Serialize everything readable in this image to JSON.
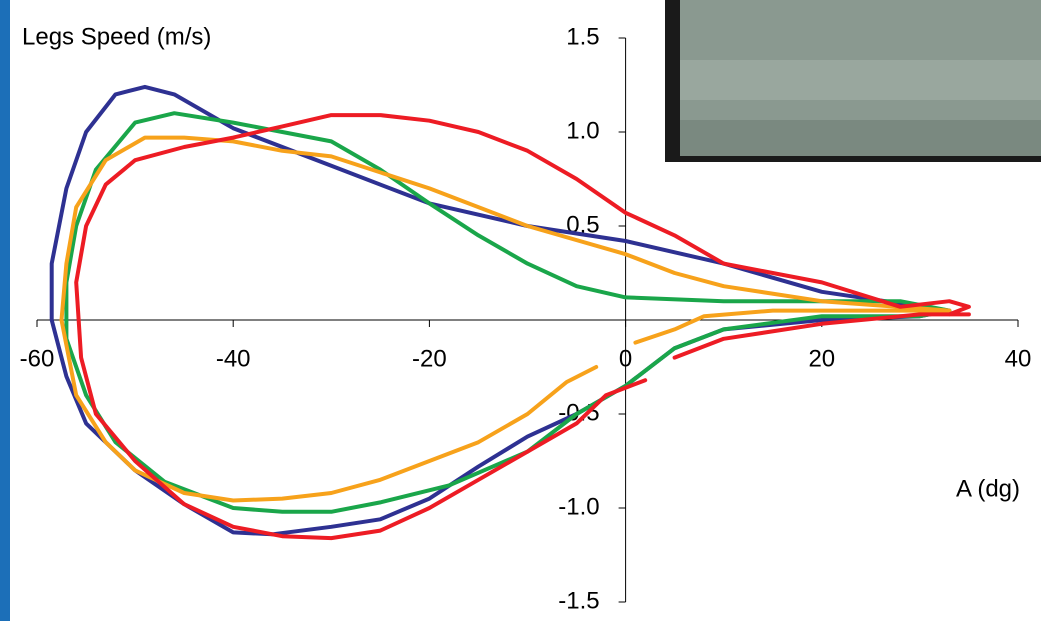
{
  "chart_data": {
    "type": "line",
    "y_label": "Legs Speed (m/s)",
    "x_label": "A (dg)",
    "xlim": [
      -60,
      40
    ],
    "xticks": [
      -60,
      -40,
      -20,
      0,
      20,
      40
    ],
    "ylim": [
      -1.5,
      1.5
    ],
    "yticks": [
      {
        "value": -1.5,
        "label": "-1.5"
      },
      {
        "value": -1.0,
        "label": "-1.0"
      },
      {
        "value": -0.5,
        "label": "-0.5"
      },
      0.5,
      {
        "value": 1.0,
        "label": "1.0"
      },
      1.5
    ],
    "series": [
      {
        "color": "#2e3192",
        "x": [
          33,
          20,
          10,
          0,
          -10,
          -20,
          -30,
          -40,
          -46,
          -49,
          -52,
          -55,
          -57,
          -58.5,
          -58.5,
          -57,
          -55,
          -50,
          -45,
          -40,
          -36,
          -30,
          -25,
          -20,
          -15,
          -10,
          -5,
          0,
          5,
          10,
          20,
          30,
          33
        ],
        "values": [
          0.05,
          0.15,
          0.3,
          0.42,
          0.5,
          0.62,
          0.82,
          1.02,
          1.2,
          1.24,
          1.2,
          1.0,
          0.7,
          0.3,
          0.0,
          -0.3,
          -0.55,
          -0.8,
          -0.98,
          -1.13,
          -1.14,
          -1.1,
          -1.06,
          -0.95,
          -0.78,
          -0.62,
          -0.5,
          -0.35,
          -0.15,
          -0.05,
          0.0,
          0.02,
          0.05
        ]
      },
      {
        "color": "#1aa64a",
        "x": [
          33,
          28,
          20,
          10,
          0,
          -5,
          -10,
          -15,
          -20,
          -25,
          -30,
          -35,
          -40,
          -46,
          -50,
          -54,
          -56,
          -57,
          -57,
          -55,
          -52,
          -47,
          -40,
          -35,
          -30,
          -25,
          -18,
          -10,
          -5,
          0,
          5,
          10,
          20,
          30,
          33
        ],
        "values": [
          0.05,
          0.1,
          0.1,
          0.1,
          0.12,
          0.18,
          0.3,
          0.45,
          0.62,
          0.8,
          0.95,
          1.0,
          1.05,
          1.1,
          1.05,
          0.8,
          0.5,
          0.2,
          -0.1,
          -0.4,
          -0.65,
          -0.86,
          -1.0,
          -1.02,
          -1.02,
          -0.97,
          -0.88,
          -0.7,
          -0.5,
          -0.35,
          -0.15,
          -0.05,
          0.02,
          0.02,
          0.05
        ]
      },
      {
        "color": "#f7a21b",
        "x": [
          33,
          20,
          10,
          5,
          0,
          -10,
          -20,
          -30,
          -35,
          -40,
          -45,
          -49,
          -53,
          -56,
          -57,
          -57.5,
          -56,
          -53,
          -50,
          -45,
          -40,
          -35,
          -30,
          -25,
          -20,
          -15,
          -10,
          -6,
          -3,
          null,
          1,
          5,
          8,
          15,
          30,
          33
        ],
        "values": [
          0.05,
          0.1,
          0.18,
          0.25,
          0.35,
          0.5,
          0.7,
          0.87,
          0.9,
          0.95,
          0.97,
          0.97,
          0.85,
          0.6,
          0.3,
          0.0,
          -0.4,
          -0.65,
          -0.8,
          -0.92,
          -0.96,
          -0.95,
          -0.92,
          -0.85,
          -0.75,
          -0.65,
          -0.5,
          -0.33,
          -0.25,
          null,
          -0.12,
          -0.05,
          0.02,
          0.05,
          0.05,
          0.05
        ]
      },
      {
        "color": "#ed1c24",
        "x": [
          33,
          35,
          33,
          28,
          20,
          10,
          5,
          0,
          -5,
          -10,
          -15,
          -20,
          -25,
          -30,
          -35,
          -40,
          -45,
          -50,
          -53,
          -55,
          -56,
          -55.5,
          -54,
          -50,
          -45,
          -40,
          -35,
          -30,
          -25,
          -20,
          -15,
          -10,
          -5,
          -2,
          2,
          null,
          5,
          10,
          20,
          30,
          35
        ],
        "values": [
          0.03,
          0.07,
          0.1,
          0.07,
          0.2,
          0.3,
          0.45,
          0.57,
          0.75,
          0.9,
          1.0,
          1.06,
          1.09,
          1.09,
          1.03,
          0.97,
          0.92,
          0.85,
          0.72,
          0.5,
          0.2,
          -0.2,
          -0.5,
          -0.75,
          -0.98,
          -1.1,
          -1.15,
          -1.16,
          -1.12,
          -1.0,
          -0.85,
          -0.7,
          -0.55,
          -0.4,
          -0.32,
          null,
          -0.2,
          -0.1,
          -0.02,
          0.03,
          0.03
        ]
      }
    ]
  }
}
